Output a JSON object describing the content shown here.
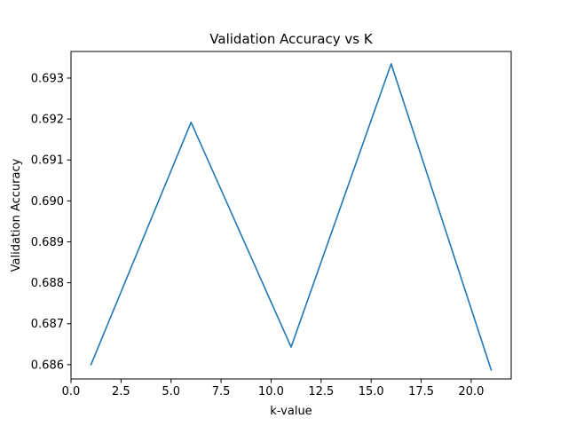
{
  "chart_data": {
    "type": "line",
    "title": "Validation Accuracy vs K",
    "xlabel": "k-value",
    "ylabel": "Validation Accuracy",
    "xlim": [
      0.0,
      22.0
    ],
    "ylim": [
      0.68565,
      0.69365
    ],
    "xticks": [
      0.0,
      2.5,
      5.0,
      7.5,
      10.0,
      12.5,
      15.0,
      17.5,
      20.0
    ],
    "xtick_labels": [
      "0.0",
      "2.5",
      "5.0",
      "7.5",
      "10.0",
      "12.5",
      "15.0",
      "17.5",
      "20.0"
    ],
    "yticks": [
      0.686,
      0.687,
      0.688,
      0.689,
      0.69,
      0.691,
      0.692,
      0.693
    ],
    "ytick_labels": [
      "0.686",
      "0.687",
      "0.688",
      "0.689",
      "0.690",
      "0.691",
      "0.692",
      "0.693"
    ],
    "grid": false,
    "series": [
      {
        "x": [
          1,
          6,
          11,
          16,
          21
        ],
        "values": [
          0.686,
          0.69192,
          0.68643,
          0.69335,
          0.68587
        ],
        "color": "#1f77b4"
      }
    ]
  }
}
